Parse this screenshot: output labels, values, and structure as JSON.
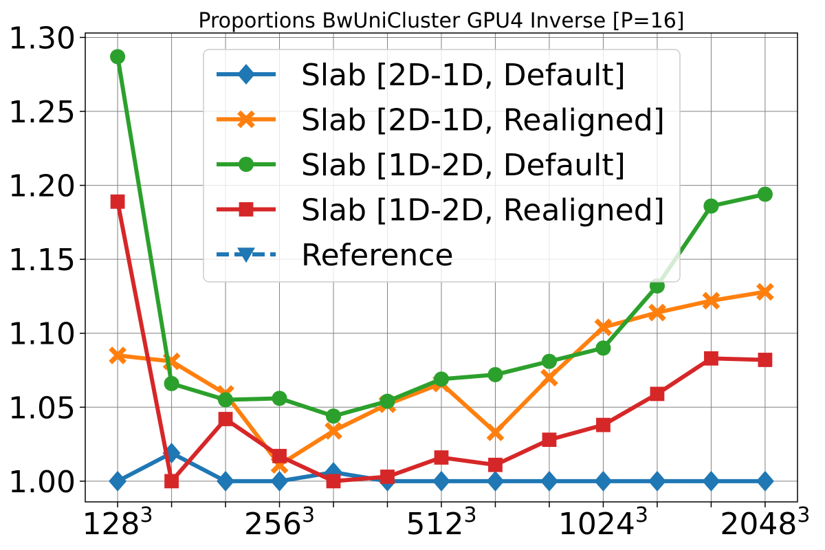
{
  "chart_data": {
    "type": "line",
    "title": "Proportions BwUniCluster GPU4 Inverse [P=16]",
    "xlabel": "",
    "ylabel": "",
    "x_positions": [
      0,
      1,
      2,
      3,
      4,
      5,
      6,
      7,
      8,
      9,
      10,
      11,
      12
    ],
    "x_ticks": [
      {
        "pos": 0,
        "base": "128",
        "exp": "3"
      },
      {
        "pos": 1,
        "base": "",
        "exp": ""
      },
      {
        "pos": 2,
        "base": "",
        "exp": ""
      },
      {
        "pos": 3,
        "base": "256",
        "exp": "3"
      },
      {
        "pos": 4,
        "base": "",
        "exp": ""
      },
      {
        "pos": 5,
        "base": "",
        "exp": ""
      },
      {
        "pos": 6,
        "base": "512",
        "exp": "3"
      },
      {
        "pos": 7,
        "base": "",
        "exp": ""
      },
      {
        "pos": 8,
        "base": "",
        "exp": ""
      },
      {
        "pos": 9,
        "base": "1024",
        "exp": "3"
      },
      {
        "pos": 10,
        "base": "",
        "exp": ""
      },
      {
        "pos": 11,
        "base": "",
        "exp": ""
      },
      {
        "pos": 12,
        "base": "2048",
        "exp": "3"
      }
    ],
    "y_ticks": [
      "1.00",
      "1.05",
      "1.10",
      "1.15",
      "1.20",
      "1.25",
      "1.30"
    ],
    "ylim": [
      0.986,
      1.303
    ],
    "xlim": [
      -0.6,
      12.6
    ],
    "grid": true,
    "legend_position": "top-center",
    "series": [
      {
        "name": "Slab [2D-1D, Default]",
        "color": "#1f77b4",
        "marker": "diamond",
        "dashed": false,
        "values": [
          1.0,
          1.019,
          1.0,
          1.0,
          1.006,
          1.0,
          1.0,
          1.0,
          1.0,
          1.0,
          1.0,
          1.0,
          1.0
        ]
      },
      {
        "name": "Slab [2D-1D, Realigned]",
        "color": "#ff7f0e",
        "marker": "x",
        "dashed": false,
        "values": [
          1.085,
          1.081,
          1.059,
          1.011,
          1.034,
          1.052,
          1.066,
          1.033,
          1.07,
          1.104,
          1.114,
          1.122,
          1.128
        ]
      },
      {
        "name": "Slab [1D-2D, Default]",
        "color": "#2ca02c",
        "marker": "circle",
        "dashed": false,
        "values": [
          1.287,
          1.066,
          1.055,
          1.056,
          1.044,
          1.054,
          1.069,
          1.072,
          1.081,
          1.09,
          1.132,
          1.186,
          1.194
        ]
      },
      {
        "name": "Slab [1D-2D, Realigned]",
        "color": "#d62728",
        "marker": "square",
        "dashed": false,
        "values": [
          1.189,
          1.0,
          1.042,
          1.017,
          1.0,
          1.003,
          1.016,
          1.011,
          1.028,
          1.038,
          1.059,
          1.083,
          1.082
        ]
      },
      {
        "name": "Reference",
        "color": "#1f77b4",
        "marker": "triangle-down",
        "dashed": true,
        "values": []
      }
    ]
  }
}
